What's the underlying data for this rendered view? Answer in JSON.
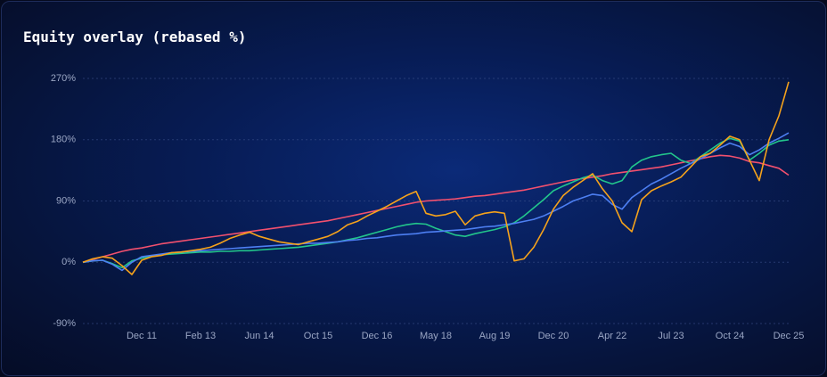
{
  "chart_data": {
    "type": "line",
    "title": "Equity overlay (rebased %)",
    "categories": [
      null,
      null,
      null,
      null,
      null,
      null,
      "Dec 11",
      null,
      null,
      null,
      null,
      null,
      "Feb 13",
      null,
      null,
      null,
      null,
      null,
      "Jun 14",
      null,
      null,
      null,
      null,
      null,
      "Oct 15",
      null,
      null,
      null,
      null,
      null,
      "Dec 16",
      null,
      null,
      null,
      null,
      null,
      "May 18",
      null,
      null,
      null,
      null,
      null,
      "Aug 19",
      null,
      null,
      null,
      null,
      null,
      "Dec 20",
      null,
      null,
      null,
      null,
      null,
      "Apr 22",
      null,
      null,
      null,
      null,
      null,
      "Jul 23",
      null,
      null,
      null,
      null,
      null,
      "Oct 24",
      null,
      null,
      null,
      null,
      null,
      "Dec 25"
    ],
    "series": [
      {
        "color": "#f2506e",
        "values": [
          0,
          4,
          8,
          12,
          16,
          19,
          21,
          24,
          27,
          29,
          31,
          33,
          35,
          37,
          39,
          41,
          43,
          45,
          47,
          49,
          51,
          53,
          55,
          57,
          59,
          61,
          64,
          67,
          70,
          73,
          76,
          79,
          82,
          85,
          88,
          90,
          91,
          92,
          93,
          95,
          97,
          98,
          100,
          102,
          104,
          106,
          109,
          112,
          115,
          118,
          121,
          123,
          125,
          127,
          130,
          132,
          134,
          136,
          138,
          140,
          143,
          146,
          149,
          152,
          155,
          157,
          156,
          153,
          148,
          146,
          142,
          138,
          128
        ]
      },
      {
        "color": "#22c58b",
        "values": [
          0,
          2,
          3,
          -2,
          -8,
          2,
          6,
          9,
          11,
          12,
          13,
          14,
          15,
          15,
          16,
          16,
          17,
          17,
          18,
          19,
          20,
          21,
          22,
          24,
          26,
          28,
          30,
          33,
          36,
          40,
          44,
          48,
          52,
          55,
          57,
          56,
          50,
          45,
          40,
          38,
          42,
          45,
          48,
          52,
          58,
          68,
          80,
          92,
          105,
          112,
          118,
          124,
          128,
          120,
          115,
          120,
          140,
          150,
          155,
          158,
          160,
          150,
          145,
          155,
          165,
          175,
          182,
          178,
          150,
          160,
          172,
          178,
          180
        ]
      },
      {
        "color": "#4d7ff2",
        "values": [
          0,
          2,
          3,
          -3,
          -12,
          0,
          8,
          10,
          12,
          14,
          15,
          16,
          17,
          18,
          19,
          20,
          21,
          22,
          23,
          24,
          25,
          26,
          27,
          28,
          28,
          29,
          30,
          32,
          33,
          35,
          36,
          38,
          40,
          41,
          42,
          44,
          45,
          46,
          47,
          48,
          50,
          52,
          53,
          55,
          57,
          60,
          63,
          68,
          75,
          82,
          90,
          95,
          100,
          98,
          85,
          78,
          95,
          105,
          115,
          122,
          130,
          138,
          145,
          152,
          160,
          168,
          175,
          170,
          158,
          165,
          175,
          182,
          190
        ]
      },
      {
        "color": "#f5a21b",
        "values": [
          0,
          5,
          8,
          6,
          -5,
          -18,
          3,
          8,
          10,
          14,
          15,
          17,
          19,
          22,
          28,
          35,
          40,
          44,
          38,
          34,
          30,
          28,
          26,
          30,
          34,
          38,
          45,
          55,
          60,
          68,
          75,
          82,
          90,
          98,
          104,
          72,
          68,
          70,
          75,
          55,
          68,
          72,
          74,
          72,
          2,
          5,
          22,
          48,
          78,
          98,
          110,
          120,
          130,
          108,
          90,
          58,
          45,
          92,
          105,
          112,
          118,
          125,
          140,
          155,
          160,
          172,
          185,
          180,
          150,
          120,
          180,
          215,
          265
        ]
      }
    ],
    "ylim": [
      -90,
      270
    ],
    "yticks": [
      {
        "value": -90,
        "label": "-90%"
      },
      {
        "value": 0,
        "label": "0%"
      },
      {
        "value": 90,
        "label": "90%"
      },
      {
        "value": 180,
        "label": "180%"
      },
      {
        "value": 270,
        "label": "270%"
      }
    ],
    "grid": true
  }
}
